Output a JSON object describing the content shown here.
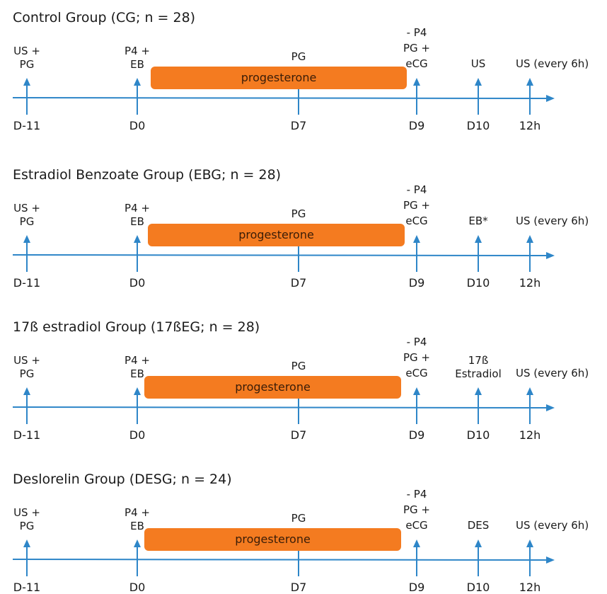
{
  "colors": {
    "arrow": "#2e86c8",
    "bar": "#f47b20",
    "text": "#1a1a1a"
  },
  "groups": [
    {
      "title": "Control Group (CG; n = 28)",
      "bar_label": "progesterone",
      "events": [
        {
          "id": "a",
          "top": "US +",
          "bottom": "PG",
          "day": "D-11"
        },
        {
          "id": "b",
          "top": "P4 +",
          "bottom": "EB",
          "day": "D0"
        },
        {
          "id": "c",
          "top": "PG",
          "bottom": "",
          "day": "D7"
        },
        {
          "id": "d",
          "lines": [
            "- P4",
            "PG +",
            "eCG"
          ],
          "day": "D9"
        },
        {
          "id": "e",
          "top": "US",
          "bottom": "",
          "day": "D10"
        },
        {
          "id": "f",
          "top": "US (every 6h)",
          "bottom": "",
          "day": "12h"
        }
      ]
    },
    {
      "title": "Estradiol Benzoate Group (EBG; n = 28)",
      "bar_label": "progesterone",
      "events": [
        {
          "id": "a",
          "top": "US +",
          "bottom": "PG",
          "day": "D-11"
        },
        {
          "id": "b",
          "top": "P4 +",
          "bottom": "EB",
          "day": "D0"
        },
        {
          "id": "c",
          "top": "PG",
          "bottom": "",
          "day": "D7"
        },
        {
          "id": "d",
          "lines": [
            "- P4",
            "PG +",
            "eCG"
          ],
          "day": "D9"
        },
        {
          "id": "e",
          "top": "EB*",
          "bottom": "",
          "day": "D10"
        },
        {
          "id": "f",
          "top": "US (every 6h)",
          "bottom": "",
          "day": "12h"
        }
      ]
    },
    {
      "title": "17ß estradiol Group (17ßEG; n = 28)",
      "bar_label": "progesterone",
      "events": [
        {
          "id": "a",
          "top": "US +",
          "bottom": "PG",
          "day": "D-11"
        },
        {
          "id": "b",
          "top": "P4 +",
          "bottom": "EB",
          "day": "D0"
        },
        {
          "id": "c",
          "top": "PG",
          "bottom": "",
          "day": "D7"
        },
        {
          "id": "d",
          "lines": [
            "- P4",
            "PG +",
            "eCG"
          ],
          "day": "D9"
        },
        {
          "id": "e",
          "top": "17ß",
          "bottom": "Estradiol",
          "day": "D10"
        },
        {
          "id": "f",
          "top": "US (every 6h)",
          "bottom": "",
          "day": "12h"
        }
      ]
    },
    {
      "title": "Deslorelin Group (DESG; n = 24)",
      "bar_label": "progesterone",
      "events": [
        {
          "id": "a",
          "top": "US +",
          "bottom": "PG",
          "day": "D-11"
        },
        {
          "id": "b",
          "top": "P4 +",
          "bottom": "EB",
          "day": "D0"
        },
        {
          "id": "c",
          "top": "PG",
          "bottom": "",
          "day": "D7"
        },
        {
          "id": "d",
          "lines": [
            "- P4",
            "PG +",
            "eCG"
          ],
          "day": "D9"
        },
        {
          "id": "e",
          "top": "DES",
          "bottom": "",
          "day": "D10"
        },
        {
          "id": "f",
          "top": "US (every 6h)",
          "bottom": "",
          "day": "12h"
        }
      ]
    }
  ]
}
